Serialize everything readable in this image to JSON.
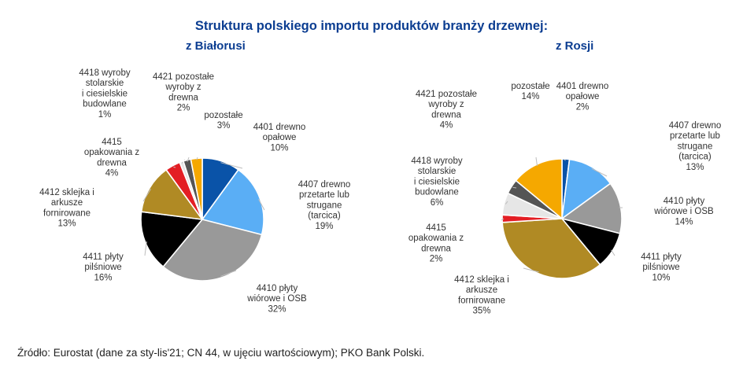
{
  "title": "Struktura polskiego importu produktów branży drzewnej:",
  "source": "Źródło: Eurostat (dane za sty-lis'21; CN 44, w ujęciu wartościowym); PKO Bank Polski.",
  "chart_data": [
    {
      "type": "pie",
      "title": "z Białorusi",
      "slices": [
        {
          "label": "4401 drewno opałowe",
          "lines": [
            "4401 drewno",
            "opałowe",
            "10%"
          ],
          "value": 10,
          "color": "#0a53a8"
        },
        {
          "label": "4407 drewno przetarte lub strugane (tarcica)",
          "lines": [
            "4407 drewno",
            "przetarte lub",
            "strugane",
            "(tarcica)",
            "19%"
          ],
          "value": 19,
          "color": "#5aaef5"
        },
        {
          "label": "4410 płyty wiórowe i OSB",
          "lines": [
            "4410 płyty",
            "wiórowe i OSB",
            "32%"
          ],
          "value": 32,
          "color": "#999999"
        },
        {
          "label": "4411 płyty pilśniowe",
          "lines": [
            "4411 płyty",
            "pilśniowe",
            "16%"
          ],
          "value": 16,
          "color": "#000000"
        },
        {
          "label": "4412 sklejka i arkusze fornirowane",
          "lines": [
            "4412 sklejka i",
            "arkusze",
            "fornirowane",
            "13%"
          ],
          "value": 13,
          "color": "#b08a24"
        },
        {
          "label": "4415 opakowania z drewna",
          "lines": [
            "4415",
            "opakowania z",
            "drewna",
            "4%"
          ],
          "value": 4,
          "color": "#e31e24"
        },
        {
          "label": "4418 wyroby stolarskie i ciesielskie budowlane",
          "lines": [
            "4418 wyroby",
            "stolarskie",
            "i ciesielskie",
            "budowlane",
            "1%"
          ],
          "value": 1,
          "color": "#e6e6e6"
        },
        {
          "label": "4421 pozostałe wyroby z drewna",
          "lines": [
            "4421 pozostałe",
            "wyroby z",
            "drewna",
            "2%"
          ],
          "value": 2,
          "color": "#555555"
        },
        {
          "label": "pozostałe",
          "lines": [
            "pozostałe",
            "3%"
          ],
          "value": 3,
          "color": "#f5a800"
        }
      ]
    },
    {
      "type": "pie",
      "title": "z Rosji",
      "slices": [
        {
          "label": "4401 drewno opałowe",
          "lines": [
            "4401 drewno",
            "opałowe",
            "2%"
          ],
          "value": 2,
          "color": "#0a53a8"
        },
        {
          "label": "4407 drewno przetarte lub strugane (tarcica)",
          "lines": [
            "4407 drewno",
            "przetarte lub",
            "strugane",
            "(tarcica)",
            "13%"
          ],
          "value": 13,
          "color": "#5aaef5"
        },
        {
          "label": "4410 płyty wiórowe i OSB",
          "lines": [
            "4410 płyty",
            "wiórowe i OSB",
            "14%"
          ],
          "value": 14,
          "color": "#999999"
        },
        {
          "label": "4411 płyty pilśniowe",
          "lines": [
            "4411 płyty",
            "pilśniowe",
            "10%"
          ],
          "value": 10,
          "color": "#000000"
        },
        {
          "label": "4412 sklejka i arkusze fornirowane",
          "lines": [
            "4412 sklejka i",
            "arkusze",
            "fornirowane",
            "35%"
          ],
          "value": 35,
          "color": "#b08a24"
        },
        {
          "label": "4415 opakowania z drewna",
          "lines": [
            "4415",
            "opakowania z",
            "drewna",
            "2%"
          ],
          "value": 2,
          "color": "#e31e24"
        },
        {
          "label": "4418 wyroby stolarskie i ciesielskie budowlane",
          "lines": [
            "4418 wyroby",
            "stolarskie",
            "i ciesielskie",
            "budowlane",
            "6%"
          ],
          "value": 6,
          "color": "#e6e6e6"
        },
        {
          "label": "4421 pozostałe wyroby z drewna",
          "lines": [
            "4421 pozostałe",
            "wyroby z",
            "drewna",
            "4%"
          ],
          "value": 4,
          "color": "#555555"
        },
        {
          "label": "pozostałe",
          "lines": [
            "pozostałe",
            "14%"
          ],
          "value": 14,
          "color": "#f5a800"
        }
      ]
    }
  ]
}
